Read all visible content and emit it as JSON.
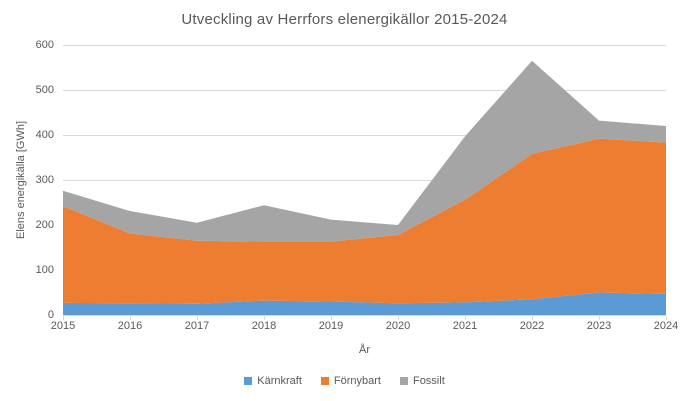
{
  "chart_data": {
    "type": "area",
    "stacked": true,
    "title": "Utveckling av Herrfors elenergikällor 2015-2024",
    "xlabel": "År",
    "ylabel": "Elens energikälla [GWh]",
    "categories": [
      "2015",
      "2016",
      "2017",
      "2018",
      "2019",
      "2020",
      "2021",
      "2022",
      "2023",
      "2024"
    ],
    "series": [
      {
        "name": "Kärnkraft",
        "color": "#5B9BD5",
        "values": [
          27,
          26,
          25,
          32,
          30,
          26,
          28,
          35,
          50,
          47
        ]
      },
      {
        "name": "Förnybart",
        "color": "#ED7D31",
        "values": [
          215,
          155,
          140,
          131,
          133,
          152,
          228,
          323,
          342,
          336
        ]
      },
      {
        "name": "Fossilt",
        "color": "#A5A5A5",
        "values": [
          34,
          50,
          40,
          81,
          49,
          22,
          141,
          207,
          40,
          37
        ]
      }
    ],
    "stacked_totals": [
      276,
      231,
      205,
      244,
      212,
      200,
      397,
      565,
      432,
      420
    ],
    "ylim": [
      0,
      600
    ],
    "y_ticks": [
      0,
      100,
      200,
      300,
      400,
      500,
      600
    ],
    "grid": true,
    "legend_position": "bottom",
    "colors": {
      "gridline": "#D9D9D9",
      "tick": "#D9D9D9",
      "text": "#595959",
      "background": "#FFFFFF"
    }
  }
}
